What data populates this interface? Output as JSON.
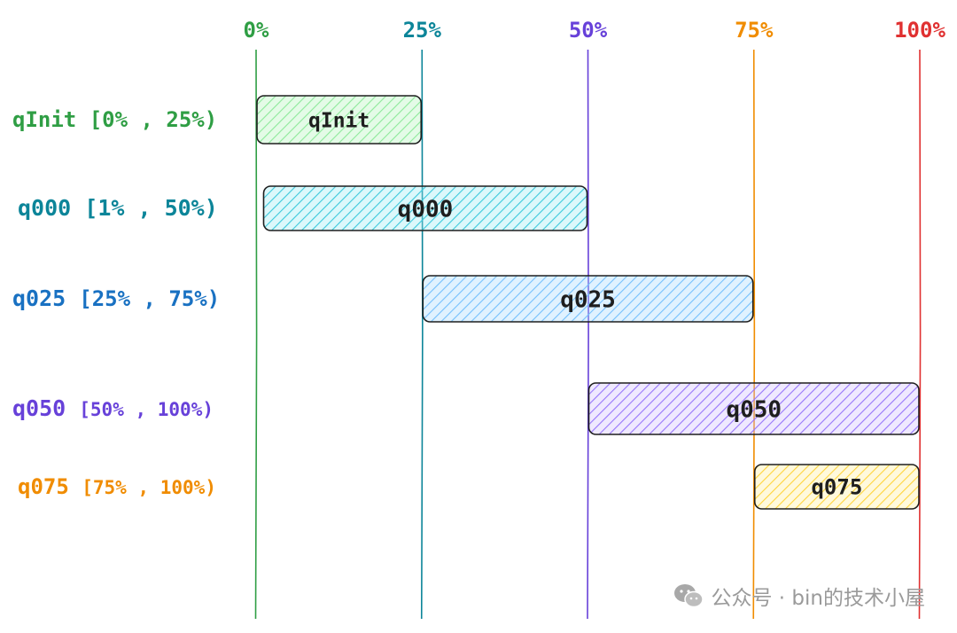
{
  "diagram": {
    "axis_ticks": [
      {
        "label": "0%",
        "value": 0,
        "color": "#2f9e44"
      },
      {
        "label": "25%",
        "value": 25,
        "color": "#0c8599"
      },
      {
        "label": "50%",
        "value": 50,
        "color": "#6741d9"
      },
      {
        "label": "75%",
        "value": 75,
        "color": "#f08c00"
      },
      {
        "label": "100%",
        "value": 100,
        "color": "#e03131"
      }
    ],
    "rows": [
      {
        "name": "qInit",
        "range_text": "[0% , 25%)",
        "start": 0,
        "end": 25,
        "bar_label": "qInit",
        "label_color": "#2f9e44",
        "fill_color": "#b2f2bb",
        "hatch_color": "#8ce99a"
      },
      {
        "name": "q000",
        "range_text": "[1% , 50%)",
        "start": 1,
        "end": 50,
        "bar_label": "q000",
        "label_color": "#0c8599",
        "fill_color": "#99e9f2",
        "hatch_color": "#3bc9db"
      },
      {
        "name": "q025",
        "range_text": "[25% , 75%)",
        "start": 25,
        "end": 75,
        "bar_label": "q025",
        "label_color": "#1971c2",
        "fill_color": "#a5d8ff",
        "hatch_color": "#74c0fc"
      },
      {
        "name": "q050",
        "range_text": "[50% , 100%)",
        "start": 50,
        "end": 100,
        "bar_label": "q050",
        "label_color": "#6741d9",
        "fill_color": "#d0bfff",
        "hatch_color": "#9775fa"
      },
      {
        "name": "q075",
        "range_text": "[75% , 100%)",
        "start": 75,
        "end": 100,
        "bar_label": "q075",
        "label_color": "#f08c00",
        "fill_color": "#ffec99",
        "hatch_color": "#ffd43b"
      }
    ]
  },
  "watermark": {
    "text": "公众号 · bin的技术小屋",
    "icon": "wechat-icon",
    "color": "#9a9a9a"
  }
}
